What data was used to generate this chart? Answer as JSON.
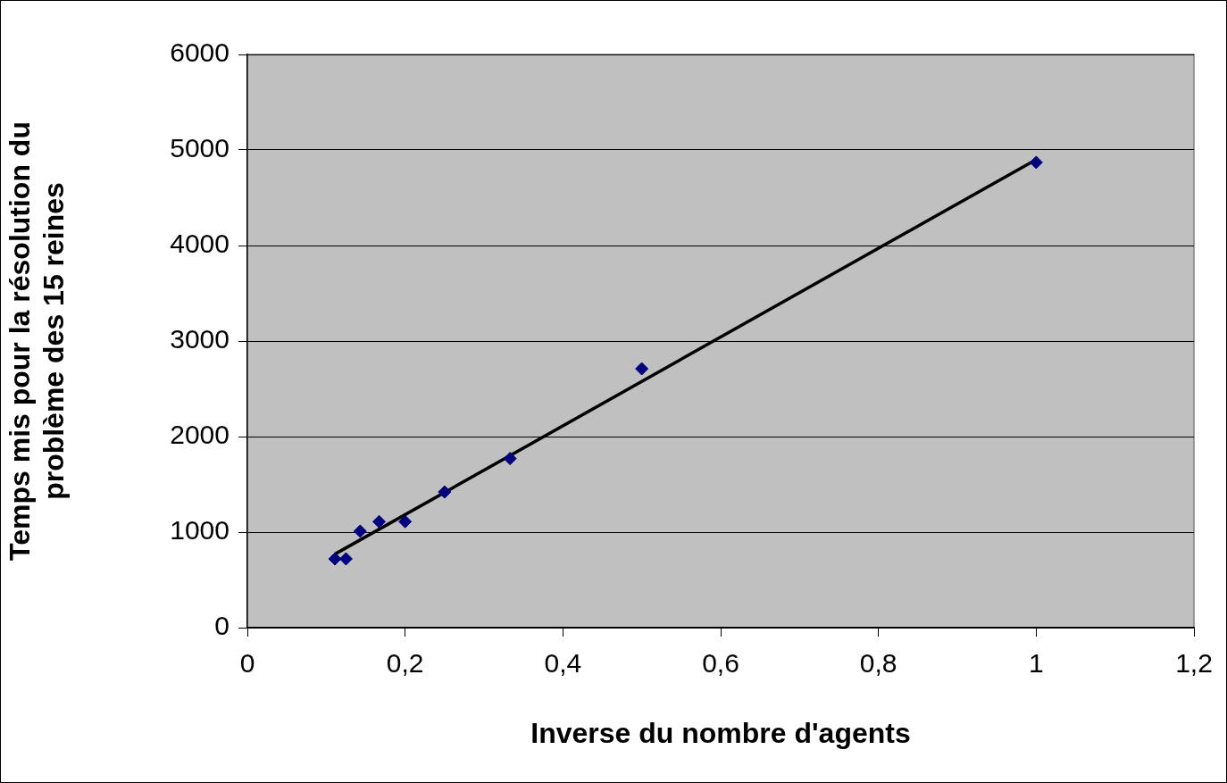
{
  "chart_data": {
    "type": "scatter",
    "xlabel": "Inverse du nombre d'agents",
    "ylabel": "Temps mis pour la résolution du problème des 15 reines",
    "marker": "diamond",
    "grid": "y",
    "legend": false,
    "xlim": [
      0,
      1.2
    ],
    "xticks": [
      0,
      {
        "value": 0.2,
        "label": "0,2"
      },
      {
        "value": 0.4,
        "label": "0,4"
      },
      {
        "value": 0.6,
        "label": "0,6"
      },
      {
        "value": 0.8,
        "label": "0,8"
      },
      1,
      {
        "value": 1.2,
        "label": "1,2"
      }
    ],
    "ylim": [
      0,
      6000
    ],
    "yticks": [
      0,
      1000,
      2000,
      3000,
      4000,
      5000,
      6000
    ],
    "series": [
      {
        "color": "#000080",
        "x": [
          0.111,
          0.125,
          0.143,
          0.167,
          0.2,
          0.25,
          0.333,
          0.5,
          1
        ],
        "values": [
          720,
          720,
          1010,
          1110,
          1110,
          1420,
          1770,
          2710,
          4870
        ]
      },
      {
        "type": "line",
        "marker": "none",
        "color": "#000000",
        "x": [
          0.111,
          1
        ],
        "values": [
          770,
          4900
        ]
      }
    ]
  }
}
